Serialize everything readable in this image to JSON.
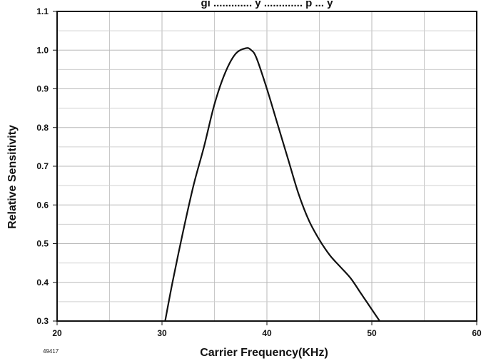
{
  "chart_data": {
    "type": "line",
    "title": "gi ............. y ............. p ... y",
    "xlabel": "Carrier Frequency(KHz)",
    "ylabel": "Relative Sensitivity",
    "code_label": "49417",
    "xlim": [
      20,
      60
    ],
    "ylim": [
      0.3,
      1.1
    ],
    "x_ticks": [
      20,
      30,
      40,
      50,
      60
    ],
    "x_tick_labels": [
      "20",
      "30",
      "40",
      "50",
      "60"
    ],
    "x_minor_ticks": [
      25,
      35,
      45,
      55
    ],
    "y_ticks": [
      0.3,
      0.4,
      0.5,
      0.6,
      0.7,
      0.8,
      0.9,
      1.0,
      1.1
    ],
    "y_tick_labels": [
      "0.3",
      "0.4",
      "0.5",
      "0.6",
      "0.7",
      "0.8",
      "0.9",
      "1.0",
      "1.1"
    ],
    "y_minor_ticks": [
      0.35,
      0.45,
      0.55,
      0.65,
      0.75,
      0.85,
      0.95,
      1.05
    ],
    "grid": true,
    "series": [
      {
        "name": "",
        "color": "#111111",
        "x": [
          30.3,
          31.0,
          32.0,
          33.0,
          34.0,
          35.0,
          36.0,
          37.0,
          38.0,
          38.5,
          39.0,
          40.0,
          41.0,
          42.0,
          43.0,
          44.0,
          45.0,
          46.0,
          47.0,
          48.0,
          49.0,
          50.0,
          51.0
        ],
        "y": [
          0.3,
          0.4,
          0.53,
          0.65,
          0.75,
          0.86,
          0.94,
          0.99,
          1.005,
          1.0,
          0.98,
          0.9,
          0.81,
          0.72,
          0.63,
          0.56,
          0.51,
          0.47,
          0.44,
          0.41,
          0.37,
          0.33,
          0.29
        ]
      }
    ]
  }
}
